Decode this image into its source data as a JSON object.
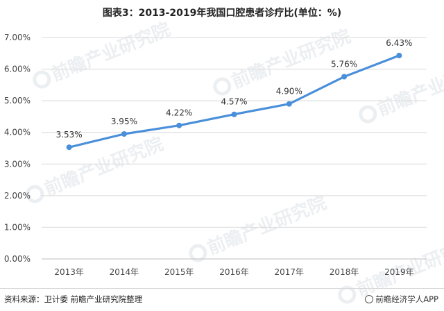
{
  "chart_data": {
    "type": "line",
    "title": "图表3：2013-2019年我国口腔患者诊疗比(单位：%)",
    "categories": [
      "2013年",
      "2014年",
      "2015年",
      "2016年",
      "2017年",
      "2018年",
      "2019年"
    ],
    "series": [
      {
        "values": [
          3.53,
          3.95,
          4.22,
          4.57,
          4.9,
          5.76,
          6.43
        ]
      }
    ],
    "data_labels": [
      "3.53%",
      "3.95%",
      "4.22%",
      "4.57%",
      "4.90%",
      "5.76%",
      "6.43%"
    ],
    "ylim": [
      0,
      7
    ],
    "yticks": [
      0,
      1,
      2,
      3,
      4,
      5,
      6,
      7
    ],
    "ytick_labels": [
      "0.00%",
      "1.00%",
      "2.00%",
      "3.00%",
      "4.00%",
      "5.00%",
      "6.00%",
      "7.00%"
    ],
    "xlabel": "",
    "ylabel": "",
    "grid": true,
    "line_color": "#4a8fd9",
    "grid_color": "#d9d9d9"
  },
  "footer": {
    "source": "资料来源：卫计委 前瞻产业研究院整理",
    "brand": "前瞻经济学人APP"
  },
  "watermark_text": "前瞻产业研究院"
}
